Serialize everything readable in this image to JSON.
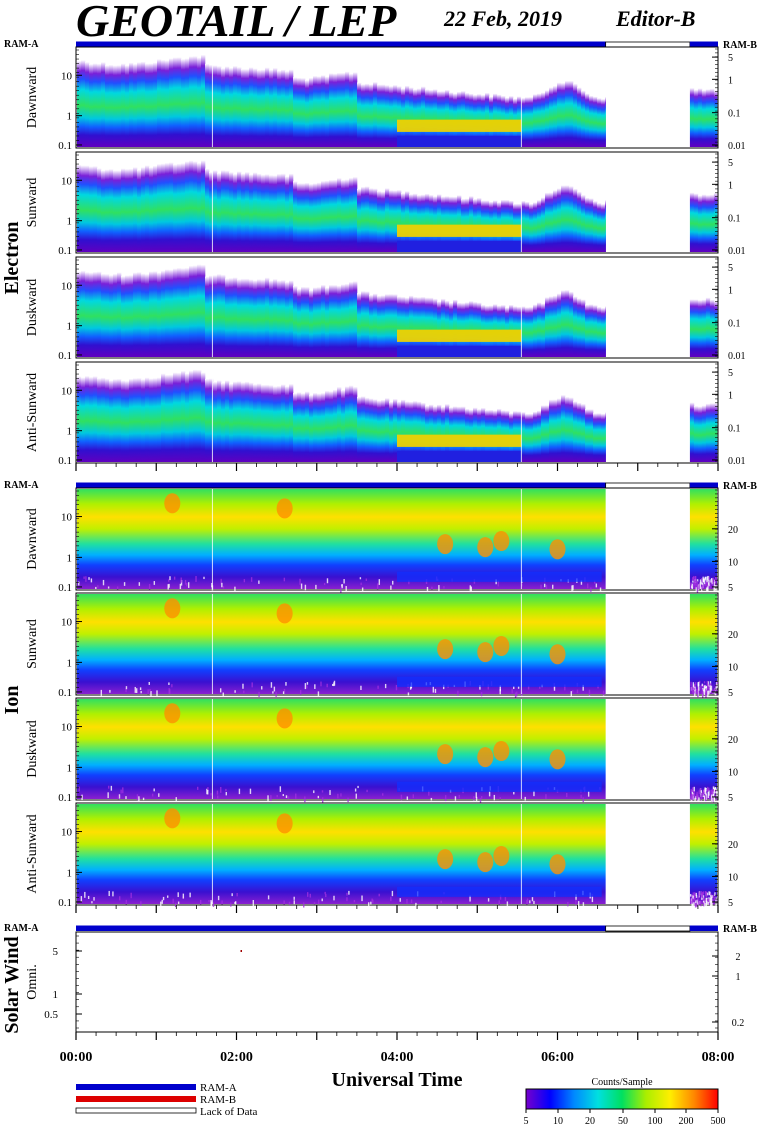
{
  "header": {
    "title": "GEOTAIL / LEP",
    "date": "22 Feb, 2019",
    "editor": "Editor-B"
  },
  "ram_labels": {
    "left": "RAM-A",
    "right": "RAM-B"
  },
  "colors": {
    "ram_a": "#0000cc",
    "ram_b": "#dd0000",
    "lack": "#ffffff"
  },
  "chart_data": [
    {
      "type": "heatmap",
      "group": "Electron",
      "panels": [
        {
          "label": "Dawnward",
          "y_ticks": [
            "10",
            "1",
            "0.1"
          ],
          "right_ticks": [
            "5",
            "1",
            "0.1",
            "0.01"
          ]
        },
        {
          "label": "Sunward",
          "y_ticks": [
            "10",
            "1",
            "0.1"
          ],
          "right_ticks": [
            "5",
            "1",
            "0.1",
            "0.01"
          ]
        },
        {
          "label": "Duskward",
          "y_ticks": [
            "10",
            "1",
            "0.1"
          ],
          "right_ticks": [
            "5",
            "1",
            "0.1",
            "0.01"
          ]
        },
        {
          "label": "Anti-Sunward",
          "y_ticks": [
            "10",
            "1",
            "0.1"
          ],
          "right_ticks": [
            "5",
            "1",
            "0.1",
            "0.01"
          ]
        }
      ],
      "data_gaps_hours": [
        [
          6.6,
          7.65
        ]
      ]
    },
    {
      "type": "heatmap",
      "group": "Ion",
      "panels": [
        {
          "label": "Dawnward",
          "y_ticks": [
            "10",
            "1",
            "0.1"
          ],
          "right_ticks": [
            "20",
            "10",
            "5"
          ]
        },
        {
          "label": "Sunward",
          "y_ticks": [
            "10",
            "1",
            "0.1"
          ],
          "right_ticks": [
            "20",
            "10",
            "5"
          ]
        },
        {
          "label": "Duskward",
          "y_ticks": [
            "10",
            "1",
            "0.1"
          ],
          "right_ticks": [
            "20",
            "10",
            "5"
          ]
        },
        {
          "label": "Anti-Sunward",
          "y_ticks": [
            "10",
            "1",
            "0.1"
          ],
          "right_ticks": [
            "20",
            "10",
            "5"
          ]
        }
      ],
      "data_gaps_hours": [
        [
          6.6,
          7.65
        ]
      ]
    },
    {
      "type": "heatmap",
      "group": "Solar Wind",
      "panels": [
        {
          "label": "Omni.",
          "y_ticks": [
            "5",
            "1",
            "0.5"
          ],
          "right_ticks": [
            "2",
            "1",
            "0.2"
          ]
        }
      ]
    }
  ],
  "ram_bars": [
    {
      "segments": [
        {
          "start": 0,
          "end": 6.6,
          "mode": "ram_a"
        },
        {
          "start": 6.6,
          "end": 7.65,
          "mode": "lack"
        },
        {
          "start": 7.65,
          "end": 8,
          "mode": "ram_a"
        }
      ]
    },
    {
      "segments": [
        {
          "start": 0,
          "end": 6.6,
          "mode": "ram_a"
        },
        {
          "start": 6.6,
          "end": 7.65,
          "mode": "lack"
        },
        {
          "start": 7.65,
          "end": 8,
          "mode": "ram_a"
        }
      ]
    },
    {
      "segments": [
        {
          "start": 0,
          "end": 6.6,
          "mode": "ram_a"
        },
        {
          "start": 6.6,
          "end": 7.65,
          "mode": "lack"
        },
        {
          "start": 7.65,
          "end": 8,
          "mode": "ram_a"
        }
      ]
    }
  ],
  "x_axis": {
    "title": "Universal Time",
    "range_hours": [
      0,
      8
    ],
    "tick_labels": [
      "00:00",
      "02:00",
      "04:00",
      "06:00",
      "08:00"
    ]
  },
  "legend": {
    "items": [
      "RAM-A",
      "RAM-B",
      "Lack of Data"
    ],
    "colorbar_title": "Counts/Sample",
    "colorbar_ticks": [
      "5",
      "10",
      "20",
      "50",
      "100",
      "200",
      "500"
    ]
  }
}
